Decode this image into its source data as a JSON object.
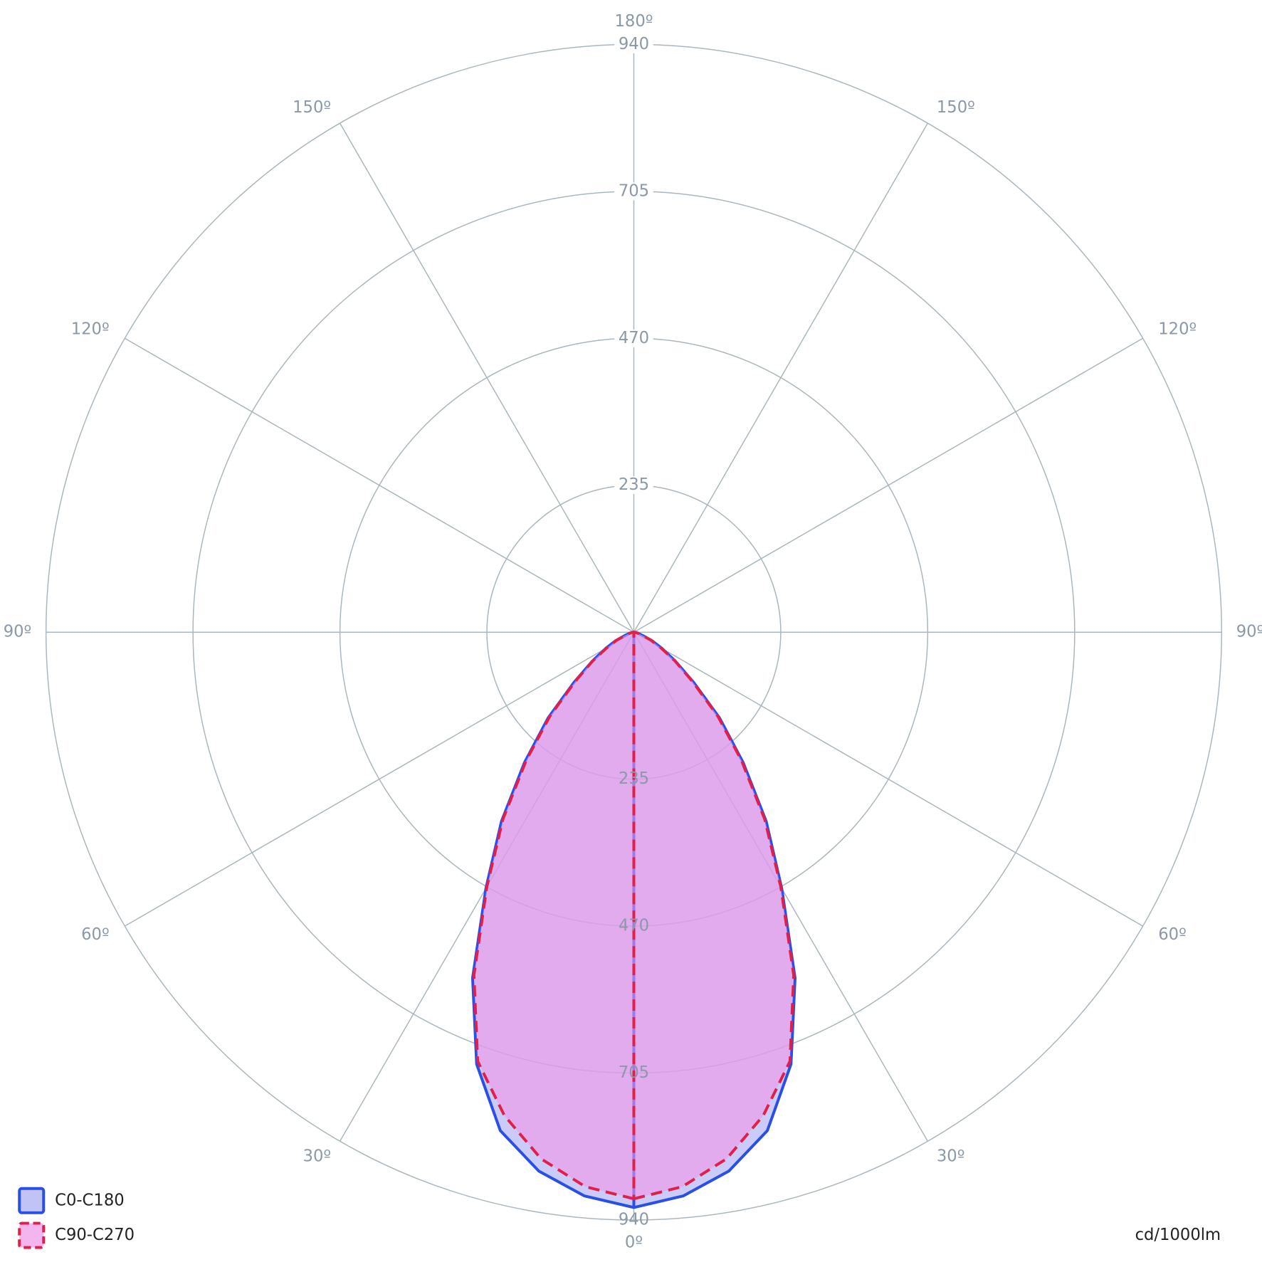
{
  "chart_data": {
    "type": "polar",
    "angles": [
      0,
      5,
      10,
      15,
      20,
      25,
      30,
      35,
      40,
      45,
      50,
      55,
      60,
      65,
      70,
      75,
      80,
      85,
      90
    ],
    "series": [
      {
        "name": "C0-C180",
        "color": "#2a4fe6",
        "fill": "#a7a9f3",
        "dashed": false,
        "values": [
          920,
          905,
          875,
          825,
          735,
          610,
          473,
          369,
          272,
          194,
          125,
          82,
          52,
          32,
          15,
          8,
          5,
          2,
          0
        ]
      },
      {
        "name": "C90-C270",
        "color": "#e0204a",
        "fill": "#f096e8",
        "dashed": true,
        "values": [
          906,
          890,
          855,
          800,
          730,
          605,
          470,
          365,
          268,
          190,
          122,
          80,
          50,
          30,
          15,
          8,
          4,
          1,
          0
        ]
      }
    ],
    "rlim": [
      0,
      940
    ],
    "rticks": [
      235,
      470,
      705,
      940
    ],
    "angle_ticks": [
      {
        "value": 0,
        "label": "0º"
      },
      {
        "value": 30,
        "label": "30º"
      },
      {
        "value": 60,
        "label": "60º"
      },
      {
        "value": 90,
        "label": "90º"
      },
      {
        "value": 120,
        "label": "120º"
      },
      {
        "value": 150,
        "label": "150º"
      },
      {
        "value": 180,
        "label": "180º"
      }
    ],
    "unit": "cd/1000lm",
    "legend": "bottom-left"
  }
}
